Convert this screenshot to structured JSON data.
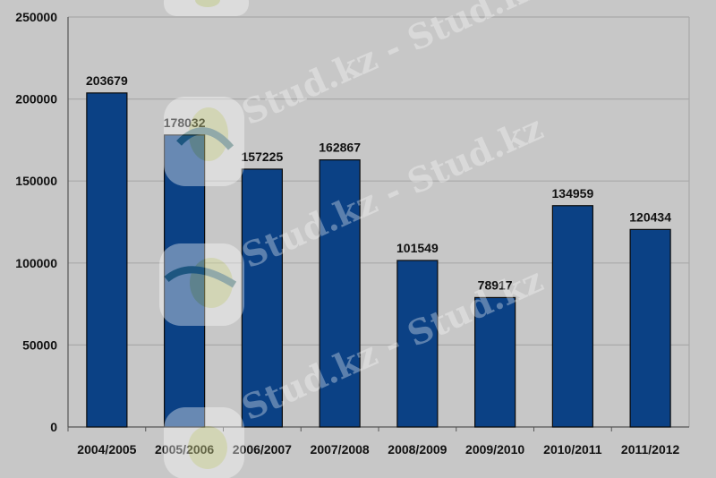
{
  "watermark": {
    "text": "Stud.kz - Stud.kz"
  },
  "chart_data": {
    "type": "bar",
    "categories": [
      "2004/2005",
      "2005/2006",
      "2006/2007",
      "2007/2008",
      "2008/2009",
      "2009/2010",
      "2010/2011",
      "2011/2012"
    ],
    "values": [
      203679,
      178032,
      157225,
      162867,
      101549,
      78917,
      134959,
      120434
    ],
    "data_labels": [
      "203679",
      "178032",
      "157225",
      "162867",
      "101549",
      "78917",
      "134959",
      "120434"
    ],
    "y_ticks": [
      0,
      50000,
      100000,
      150000,
      200000,
      250000
    ],
    "ylim": [
      0,
      250000
    ],
    "title": "",
    "xlabel": "",
    "ylabel": "",
    "grid": true,
    "legend": "none",
    "colors": {
      "bar": "#0b4185",
      "bar_edge": "#0a0a0a",
      "grid": "#a9a9a9",
      "axis": "#555555",
      "background": "#c7c7c7"
    }
  }
}
